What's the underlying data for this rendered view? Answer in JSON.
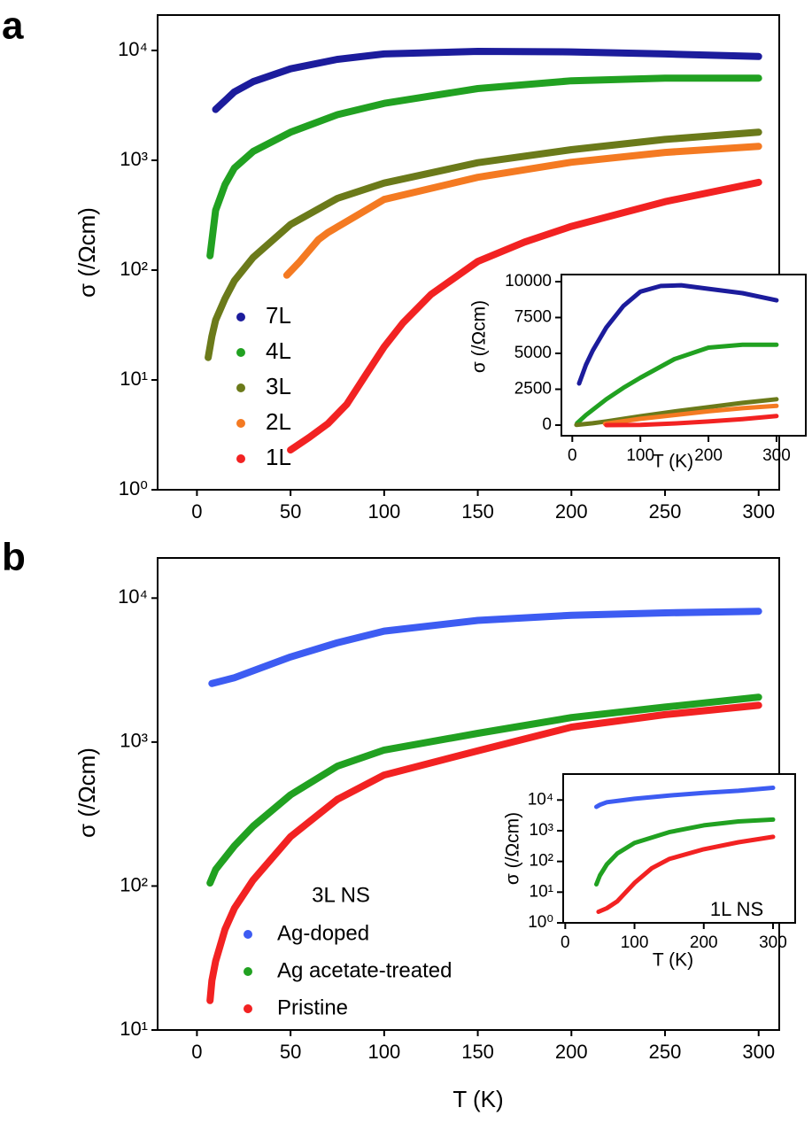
{
  "chart_data": [
    {
      "type": "line",
      "panel_label": "a",
      "log_y": true,
      "xlim": [
        -21,
        311
      ],
      "ylim": [
        1,
        21000
      ],
      "xticks": [
        0,
        50,
        100,
        150,
        200,
        250,
        300
      ],
      "yticks": [
        {
          "value": 1,
          "label": "10⁰"
        },
        {
          "value": 10,
          "label": "10¹"
        },
        {
          "value": 100,
          "label": "10²"
        },
        {
          "value": 1000,
          "label": "10³"
        },
        {
          "value": 10000,
          "label": "10⁴"
        }
      ],
      "y_label": "σ (/Ωcm)",
      "legend": "lower left",
      "series": [
        {
          "name": "7L",
          "color": "#1c1c9c",
          "x": [
            10,
            20,
            30,
            50,
            75,
            100,
            150,
            200,
            250,
            300
          ],
          "values": [
            2900,
            4200,
            5200,
            6800,
            8300,
            9300,
            9800,
            9700,
            9300,
            8800
          ]
        },
        {
          "name": "4L",
          "color": "#21a121",
          "x": [
            7,
            10,
            15,
            20,
            30,
            50,
            75,
            100,
            150,
            200,
            250,
            300
          ],
          "values": [
            135,
            350,
            600,
            850,
            1200,
            1800,
            2600,
            3300,
            4500,
            5300,
            5600,
            5600
          ]
        },
        {
          "name": "3L",
          "color": "#6b7a1a",
          "x": [
            6,
            8,
            10,
            15,
            20,
            30,
            50,
            75,
            100,
            150,
            200,
            250,
            300
          ],
          "values": [
            16,
            25,
            35,
            55,
            80,
            130,
            260,
            450,
            620,
            950,
            1250,
            1550,
            1800
          ]
        },
        {
          "name": "2L",
          "color": "#f47a22",
          "x": [
            48,
            55,
            65,
            70,
            100,
            150,
            200,
            250,
            300
          ],
          "values": [
            90,
            120,
            190,
            220,
            440,
            700,
            960,
            1180,
            1340
          ]
        },
        {
          "name": "1L",
          "color": "#f22222",
          "x": [
            50,
            60,
            70,
            80,
            90,
            100,
            110,
            125,
            150,
            175,
            200,
            250,
            300
          ],
          "values": [
            2.3,
            3,
            4,
            6,
            11,
            20,
            33,
            60,
            120,
            180,
            250,
            420,
            630
          ]
        }
      ]
    },
    {
      "type": "line",
      "log_y": false,
      "xlim": [
        -16,
        343
      ],
      "ylim": [
        -741,
        10494
      ],
      "xticks": [
        0,
        100,
        200,
        300
      ],
      "yticks": [
        0,
        2500,
        5000,
        7500,
        10000
      ],
      "x_label": "T (K)",
      "y_label": "σ (/Ωcm)",
      "series": [
        {
          "color": "#1c1c9c",
          "x": [
            10,
            20,
            30,
            50,
            75,
            100,
            130,
            160,
            200,
            250,
            300
          ],
          "values": [
            2900,
            4200,
            5200,
            6800,
            8300,
            9300,
            9700,
            9750,
            9500,
            9200,
            8700
          ]
        },
        {
          "color": "#21a121",
          "x": [
            7,
            20,
            50,
            75,
            100,
            150,
            200,
            250,
            300
          ],
          "values": [
            135,
            700,
            1800,
            2600,
            3300,
            4600,
            5400,
            5600,
            5600
          ]
        },
        {
          "color": "#6b7a1a",
          "x": [
            6,
            30,
            50,
            100,
            150,
            200,
            250,
            300
          ],
          "values": [
            16,
            130,
            260,
            620,
            950,
            1250,
            1550,
            1800
          ]
        },
        {
          "color": "#f47a22",
          "x": [
            48,
            100,
            150,
            200,
            250,
            300
          ],
          "values": [
            90,
            440,
            700,
            960,
            1180,
            1340
          ]
        },
        {
          "color": "#f22222",
          "x": [
            50,
            100,
            150,
            200,
            250,
            300
          ],
          "values": [
            2.3,
            20,
            120,
            250,
            420,
            630
          ]
        }
      ]
    },
    {
      "type": "line",
      "panel_label": "b",
      "log_y": true,
      "xlim": [
        -21,
        311
      ],
      "ylim": [
        10,
        19000
      ],
      "xticks": [
        0,
        50,
        100,
        150,
        200,
        250,
        300
      ],
      "yticks": [
        {
          "value": 10,
          "label": "10¹"
        },
        {
          "value": 100,
          "label": "10²"
        },
        {
          "value": 1000,
          "label": "10³"
        },
        {
          "value": 10000,
          "label": "10⁴"
        }
      ],
      "x_label": "T (K)",
      "y_label": "σ (/Ωcm)",
      "legend": "lower left",
      "legend_title": "3L NS",
      "series": [
        {
          "name": "Ag-doped",
          "color": "#3d5cf2",
          "x": [
            8,
            20,
            50,
            75,
            100,
            150,
            200,
            250,
            300
          ],
          "values": [
            2550,
            2800,
            3900,
            4900,
            5900,
            7000,
            7600,
            7900,
            8100
          ]
        },
        {
          "name": "Ag acetate-treated",
          "color": "#21a121",
          "x": [
            7,
            10,
            20,
            30,
            50,
            75,
            100,
            150,
            200,
            250,
            300
          ],
          "values": [
            105,
            130,
            190,
            260,
            430,
            680,
            880,
            1150,
            1480,
            1750,
            2050
          ]
        },
        {
          "name": "Pristine",
          "color": "#f22222",
          "x": [
            7,
            8,
            10,
            15,
            20,
            30,
            50,
            75,
            100,
            150,
            200,
            250,
            300
          ],
          "values": [
            16,
            22,
            30,
            50,
            70,
            110,
            220,
            400,
            590,
            870,
            1270,
            1550,
            1800
          ]
        }
      ]
    },
    {
      "type": "line",
      "log_y": true,
      "xlim": [
        -3,
        332
      ],
      "ylim": [
        1,
        70000
      ],
      "xticks": [
        0,
        100,
        200,
        300
      ],
      "yticks": [
        {
          "value": 1,
          "label": "10⁰"
        },
        {
          "value": 10,
          "label": "10¹"
        },
        {
          "value": 100,
          "label": "10²"
        },
        {
          "value": 1000,
          "label": "10³"
        },
        {
          "value": 10000,
          "label": "10⁴"
        }
      ],
      "x_label": "T (K)",
      "y_label": "σ (/Ωcm)",
      "annotation": "1L NS",
      "series": [
        {
          "color": "#3d5cf2",
          "x": [
            45,
            50,
            60,
            100,
            150,
            200,
            250,
            300
          ],
          "values": [
            6000,
            7000,
            8500,
            11000,
            14000,
            17000,
            20000,
            25000
          ]
        },
        {
          "color": "#21a121",
          "x": [
            45,
            50,
            60,
            75,
            100,
            150,
            200,
            250,
            300
          ],
          "values": [
            18,
            35,
            80,
            180,
            400,
            900,
            1500,
            2000,
            2300
          ]
        },
        {
          "color": "#f22222",
          "x": [
            48,
            60,
            75,
            100,
            125,
            150,
            200,
            250,
            300
          ],
          "values": [
            2.3,
            3,
            5,
            20,
            60,
            120,
            250,
            420,
            630
          ]
        }
      ]
    }
  ]
}
